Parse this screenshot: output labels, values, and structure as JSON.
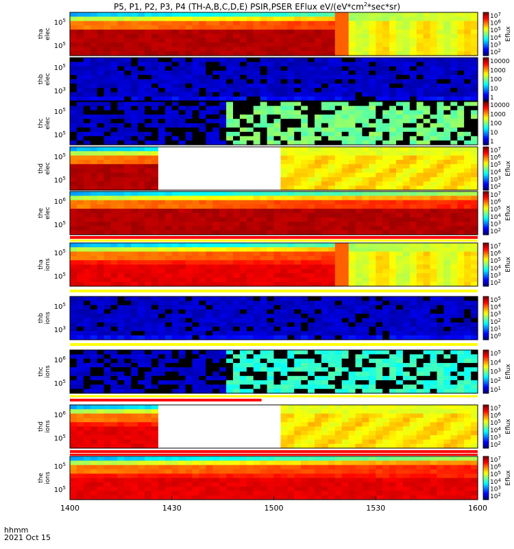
{
  "title": {
    "main": "P5, P1, P2, P3, P4 (TH-A,B,C,D,E) PSIR,PSER EFlux eV/(eV*cm",
    "sup": "2",
    "tail": "*sec*sr)"
  },
  "footer": {
    "time_label": "hhmm",
    "date_label": "2021 Oct 15"
  },
  "chart_data": {
    "type": "heatmap",
    "x_ticks": [
      "1400",
      "1430",
      "1500",
      "1530",
      "1600"
    ],
    "x_range_hhmm": [
      "1400",
      "1600"
    ],
    "colorbar_label": "Eflux",
    "panels": [
      {
        "probe": "tha",
        "species": "elec",
        "y_ticks": [
          "10^5",
          "10^5"
        ],
        "cbar_ticks": [
          "10^7",
          "10^6",
          "10^5",
          "10^4",
          "10^3",
          "10^2"
        ],
        "cbar_label": "Eflux",
        "pattern": "dense_gap",
        "gap_x": [
          1518,
          1520
        ]
      },
      {
        "probe": "thb",
        "species": "elec",
        "y_ticks": [
          "10^5",
          "10^3"
        ],
        "cbar_ticks": [
          "10000",
          "1000",
          "100",
          "10",
          "1"
        ],
        "cbar_label": "",
        "pattern": "noise_low"
      },
      {
        "probe": "thc",
        "species": "elec",
        "y_ticks": [
          "10^5",
          "10^5"
        ],
        "cbar_ticks": [
          "10000",
          "1000",
          "100",
          "10",
          "1"
        ],
        "cbar_label": "",
        "pattern": "noise_switch",
        "switch_x": 1445
      },
      {
        "probe": "thd",
        "species": "elec",
        "y_ticks": [
          "10^5",
          "10^5"
        ],
        "cbar_ticks": [
          "10^7",
          "10^6",
          "10^5",
          "10^4",
          "10^3",
          "10^2"
        ],
        "cbar_label": "Eflux",
        "pattern": "dense_blank",
        "blank_x": [
          1425,
          1502
        ]
      },
      {
        "probe": "the",
        "species": "elec",
        "y_ticks": [
          "10^6",
          "10^5"
        ],
        "cbar_ticks": [
          "10^7",
          "10^6",
          "10^5",
          "10^4",
          "10^3",
          "10^2"
        ],
        "cbar_label": "Eflux",
        "pattern": "dense"
      },
      {
        "probe": "tha",
        "species": "ions",
        "y_ticks": [
          "10^5",
          "10^5"
        ],
        "cbar_ticks": [
          "10^7",
          "10^6",
          "10^5",
          "10^4",
          "10^3",
          "10^2"
        ],
        "cbar_label": "Eflux",
        "pattern": "dense_gap_ion",
        "gap_x": [
          1518,
          1520
        ]
      },
      {
        "probe": "thb",
        "species": "ions",
        "y_ticks": [
          "10^5",
          "10^3"
        ],
        "cbar_ticks": [
          "10^5",
          "10^4",
          "10^3",
          "10^2",
          "10^1",
          "10^0"
        ],
        "cbar_label": "",
        "pattern": "noise_low"
      },
      {
        "probe": "thc",
        "species": "ions",
        "y_ticks": [
          "10^6",
          "10^5"
        ],
        "cbar_ticks": [
          "10^5",
          "10^4",
          "10^3",
          "10^2",
          "10^1"
        ],
        "cbar_label": "Eflux",
        "pattern": "noise_switch_ion",
        "switch_x": 1446
      },
      {
        "probe": "thd",
        "species": "ions",
        "y_ticks": [
          "10^6",
          "10^5"
        ],
        "cbar_ticks": [
          "10^7",
          "10^6",
          "10^5",
          "10^4",
          "10^3",
          "10^2"
        ],
        "cbar_label": "Eflux",
        "pattern": "dense_blank_ion",
        "blank_x": [
          1425,
          1502
        ]
      },
      {
        "probe": "the",
        "species": "ions",
        "y_ticks": [
          "10^5",
          "10^5"
        ],
        "cbar_ticks": [
          "10^7",
          "10^6",
          "10^5",
          "10^4",
          "10^3",
          "10^2"
        ],
        "cbar_label": "Eflux",
        "pattern": "dense_ion"
      }
    ]
  }
}
